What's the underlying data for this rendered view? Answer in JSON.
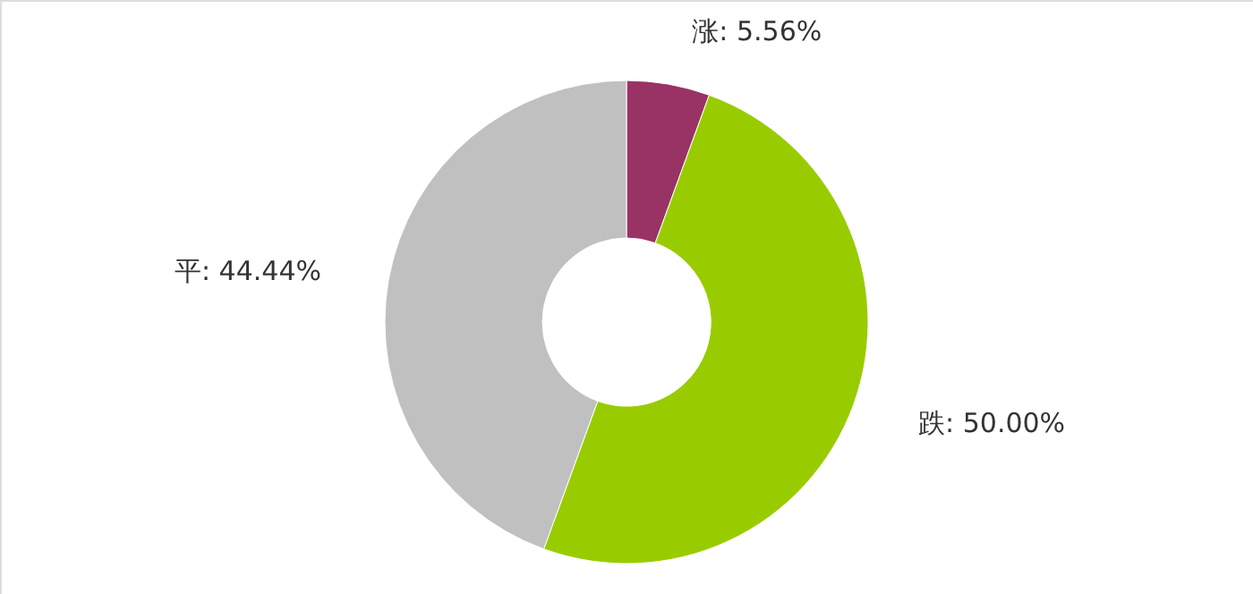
{
  "chart_data": {
    "type": "donut",
    "categories": [
      "涨",
      "跌",
      "平"
    ],
    "values": [
      5.56,
      50.0,
      44.44
    ],
    "colors": [
      "#993366",
      "#99cc00",
      "#c0c0c0"
    ],
    "value_labels": [
      "5.56%",
      "50.00%",
      "44.44%"
    ]
  }
}
